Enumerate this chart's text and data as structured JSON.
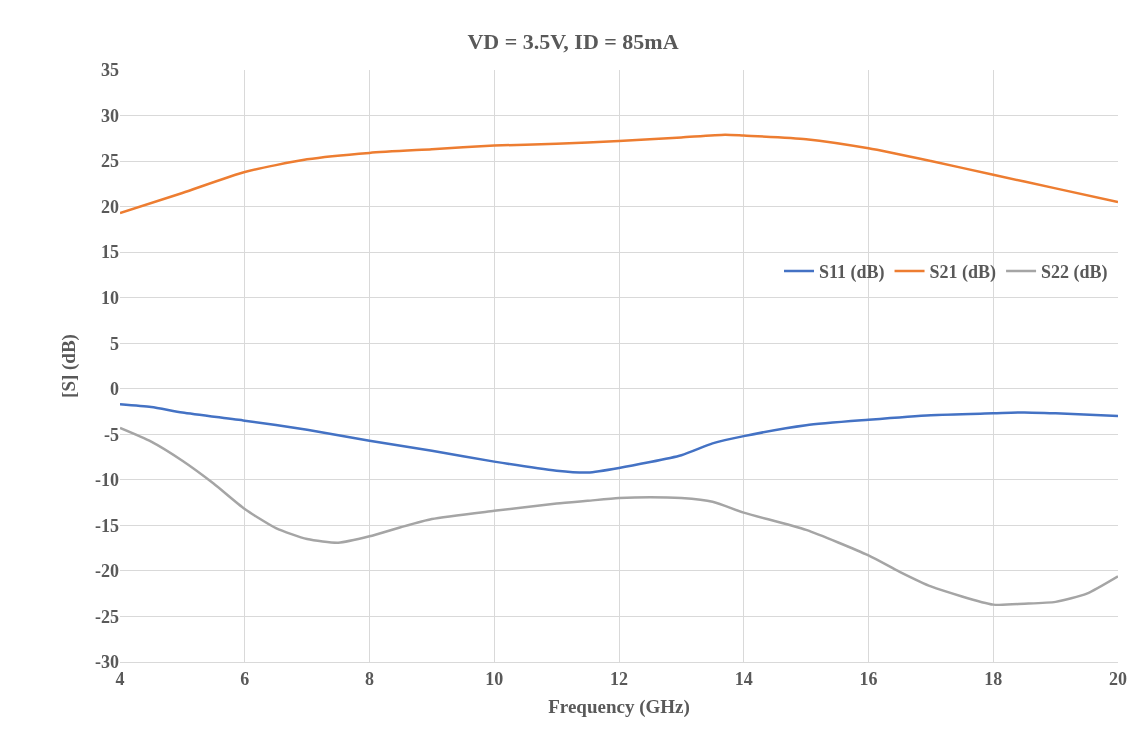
{
  "chart_data": {
    "type": "line",
    "title": "VD = 3.5V, ID = 85mA",
    "xlabel": "Frequency (GHz)",
    "ylabel": "[S] (dB)",
    "xlim": [
      4,
      20
    ],
    "xticks": [
      4,
      6,
      8,
      10,
      12,
      14,
      16,
      18,
      20
    ],
    "ylim": [
      -30,
      35
    ],
    "yticks": [
      -30,
      -25,
      -20,
      -15,
      -10,
      -5,
      0,
      5,
      10,
      15,
      20,
      25,
      30,
      35
    ],
    "grid": true,
    "legend": "right",
    "marker": "none",
    "line_style": "solid",
    "series": [
      {
        "name": "S11 (dB)",
        "color": "#4472c4",
        "x": [
          4,
          4.5,
          5,
          6,
          7,
          8,
          9,
          10,
          11,
          11.5,
          12,
          13,
          13.5,
          14,
          15,
          16,
          17,
          18,
          18.5,
          19,
          20
        ],
        "values": [
          -1.7,
          -2,
          -2.6,
          -3.5,
          -4.5,
          -5.7,
          -6.8,
          -8,
          -9,
          -9.2,
          -8.7,
          -7.3,
          -6,
          -5.2,
          -4,
          -3.4,
          -2.9,
          -2.7,
          -2.6,
          -2.7,
          -3
        ]
      },
      {
        "name": "S21 (dB)",
        "color": "#ed7d31",
        "x": [
          4,
          5,
          6,
          7,
          8,
          9,
          10,
          11,
          12,
          13,
          13.7,
          14,
          15,
          16,
          17,
          18,
          19,
          20
        ],
        "values": [
          19.3,
          21.5,
          23.8,
          25.2,
          25.9,
          26.3,
          26.7,
          26.9,
          27.2,
          27.6,
          27.9,
          27.8,
          27.4,
          26.4,
          25,
          23.5,
          22,
          20.5
        ]
      },
      {
        "name": "S22 (dB)",
        "color": "#a5a5a5",
        "x": [
          4,
          4.5,
          5,
          5.5,
          6,
          6.5,
          7,
          7.5,
          8,
          8.5,
          9,
          10,
          11,
          11.5,
          12,
          12.5,
          13,
          13.5,
          14,
          15,
          16,
          16.5,
          17,
          18,
          18.5,
          19,
          19.5,
          20
        ],
        "values": [
          -4.3,
          -5.8,
          -7.9,
          -10.4,
          -13.2,
          -15.3,
          -16.5,
          -16.9,
          -16.2,
          -15.2,
          -14.3,
          -13.4,
          -12.6,
          -12.3,
          -12,
          -11.9,
          -12,
          -12.4,
          -13.6,
          -15.5,
          -18.3,
          -20.1,
          -21.7,
          -23.7,
          -23.6,
          -23.4,
          -22.5,
          -20.6
        ]
      }
    ]
  }
}
